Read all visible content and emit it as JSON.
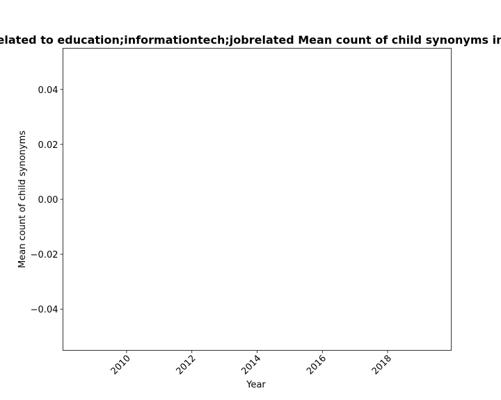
{
  "chart_data": {
    "type": "line",
    "title": "elated to education;informationtech;jobrelated Mean count of child synonyms in",
    "xlabel": "Year",
    "ylabel": "Mean count of child synonyms",
    "xlim": [
      2008.05,
      2019.95
    ],
    "ylim": [
      -0.055,
      0.055
    ],
    "x_ticks": [
      2010,
      2012,
      2014,
      2016,
      2018
    ],
    "x_tick_labels": [
      "2010",
      "2012",
      "2014",
      "2016",
      "2018"
    ],
    "y_ticks": [
      0.04,
      0.02,
      0.0,
      -0.02,
      -0.04
    ],
    "y_tick_labels": [
      "0.04",
      "0.02",
      "0.00",
      "−0.02",
      "−0.04"
    ],
    "x_tick_rotation_deg": -45,
    "grid": false,
    "legend": "none",
    "series": []
  }
}
